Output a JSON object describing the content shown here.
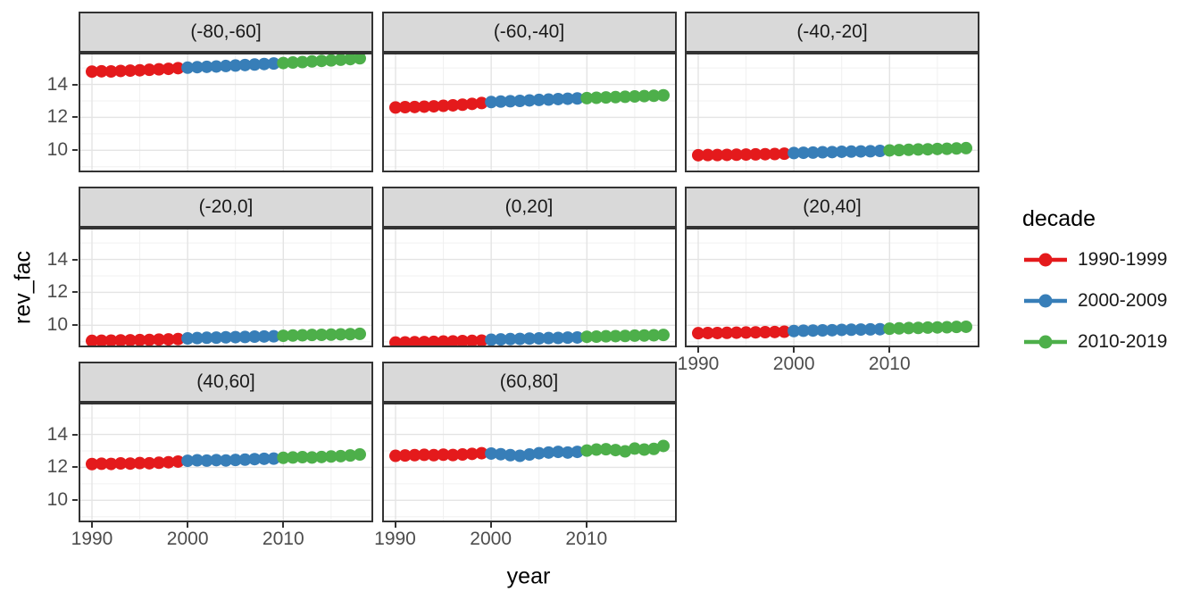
{
  "chart_data": {
    "type": "scatter",
    "title": "",
    "xlabel": "year",
    "ylabel": "rev_fac",
    "grid": "major+minor",
    "x_ticks": [
      1990,
      2000,
      2010
    ],
    "y_ticks": [
      10,
      12,
      14
    ],
    "x_minor_ticks": [
      1995,
      2005,
      2015
    ],
    "y_minor_ticks": [
      9,
      11,
      13,
      15
    ],
    "xlim": [
      1988.6,
      2019.4
    ],
    "ylim": [
      8.66,
      15.93
    ],
    "years": [
      1990,
      1991,
      1992,
      1993,
      1994,
      1995,
      1996,
      1997,
      1998,
      1999,
      2000,
      2001,
      2002,
      2003,
      2004,
      2005,
      2006,
      2007,
      2008,
      2009,
      2010,
      2011,
      2012,
      2013,
      2014,
      2015,
      2016,
      2017,
      2018
    ],
    "legend": {
      "title": "decade",
      "position": "right",
      "entries": [
        {
          "label": "1990-1999",
          "from": 1990,
          "to": 1999,
          "color": "#E41A1C"
        },
        {
          "label": "2000-2009",
          "from": 2000,
          "to": 2009,
          "color": "#377EB8"
        },
        {
          "label": "2010-2019",
          "from": 2010,
          "to": 2018,
          "color": "#4DAF4A"
        }
      ]
    },
    "facets": [
      {
        "label": "(-80,-60]",
        "values": [
          14.78,
          14.8,
          14.79,
          14.82,
          14.84,
          14.86,
          14.89,
          14.92,
          14.95,
          14.99,
          15.02,
          15.05,
          15.07,
          15.09,
          15.12,
          15.15,
          15.18,
          15.21,
          15.24,
          15.27,
          15.3,
          15.33,
          15.36,
          15.4,
          15.43,
          15.46,
          15.5,
          15.54,
          15.59
        ]
      },
      {
        "label": "(-60,-40]",
        "values": [
          12.6,
          12.62,
          12.63,
          12.65,
          12.67,
          12.7,
          12.73,
          12.77,
          12.82,
          12.87,
          12.93,
          12.96,
          12.98,
          13.0,
          13.03,
          13.06,
          13.08,
          13.11,
          13.13,
          13.15,
          13.17,
          13.19,
          13.21,
          13.23,
          13.25,
          13.27,
          13.29,
          13.31,
          13.34
        ]
      },
      {
        "label": "(-40,-20]",
        "values": [
          9.7,
          9.71,
          9.71,
          9.72,
          9.73,
          9.74,
          9.75,
          9.76,
          9.77,
          9.79,
          9.83,
          9.85,
          9.86,
          9.88,
          9.89,
          9.91,
          9.92,
          9.93,
          9.94,
          9.96,
          9.99,
          10.01,
          10.03,
          10.05,
          10.06,
          10.08,
          10.09,
          10.11,
          10.13
        ]
      },
      {
        "label": "(-20,0]",
        "values": [
          9.05,
          9.06,
          9.07,
          9.08,
          9.09,
          9.1,
          9.11,
          9.13,
          9.14,
          9.16,
          9.2,
          9.22,
          9.24,
          9.25,
          9.27,
          9.28,
          9.29,
          9.31,
          9.32,
          9.33,
          9.36,
          9.38,
          9.39,
          9.41,
          9.42,
          9.43,
          9.45,
          9.46,
          9.48
        ]
      },
      {
        "label": "(0,20]",
        "values": [
          8.95,
          8.96,
          8.97,
          8.98,
          8.99,
          9.01,
          9.02,
          9.04,
          9.05,
          9.07,
          9.12,
          9.14,
          9.16,
          9.17,
          9.19,
          9.2,
          9.22,
          9.23,
          9.25,
          9.26,
          9.3,
          9.31,
          9.33,
          9.34,
          9.35,
          9.37,
          9.38,
          9.39,
          9.41
        ]
      },
      {
        "label": "(20,40]",
        "values": [
          9.52,
          9.53,
          9.53,
          9.54,
          9.55,
          9.56,
          9.57,
          9.58,
          9.59,
          9.61,
          9.65,
          9.67,
          9.68,
          9.69,
          9.7,
          9.72,
          9.73,
          9.74,
          9.75,
          9.76,
          9.79,
          9.81,
          9.83,
          9.84,
          9.86,
          9.87,
          9.88,
          9.9,
          9.91
        ]
      },
      {
        "label": "(40,60]",
        "values": [
          12.2,
          12.22,
          12.21,
          12.24,
          12.23,
          12.26,
          12.25,
          12.28,
          12.31,
          12.35,
          12.4,
          12.43,
          12.41,
          12.44,
          12.42,
          12.45,
          12.47,
          12.5,
          12.52,
          12.53,
          12.58,
          12.6,
          12.62,
          12.6,
          12.63,
          12.66,
          12.68,
          12.72,
          12.78
        ]
      },
      {
        "label": "(60,80]",
        "values": [
          12.7,
          12.72,
          12.74,
          12.76,
          12.74,
          12.77,
          12.75,
          12.78,
          12.82,
          12.86,
          12.84,
          12.8,
          12.74,
          12.7,
          12.78,
          12.86,
          12.9,
          12.94,
          12.9,
          12.94,
          13.02,
          13.08,
          13.1,
          13.05,
          12.97,
          13.14,
          13.08,
          13.12,
          13.3
        ]
      }
    ],
    "theme": {
      "strip_fill": "#D9D9D9",
      "panel_border": "#333333",
      "grid_major": "#E4E4E4",
      "grid_minor": "#F0F0F0",
      "tick_label_color": "#4D4D4D",
      "point_radius": 7
    }
  }
}
